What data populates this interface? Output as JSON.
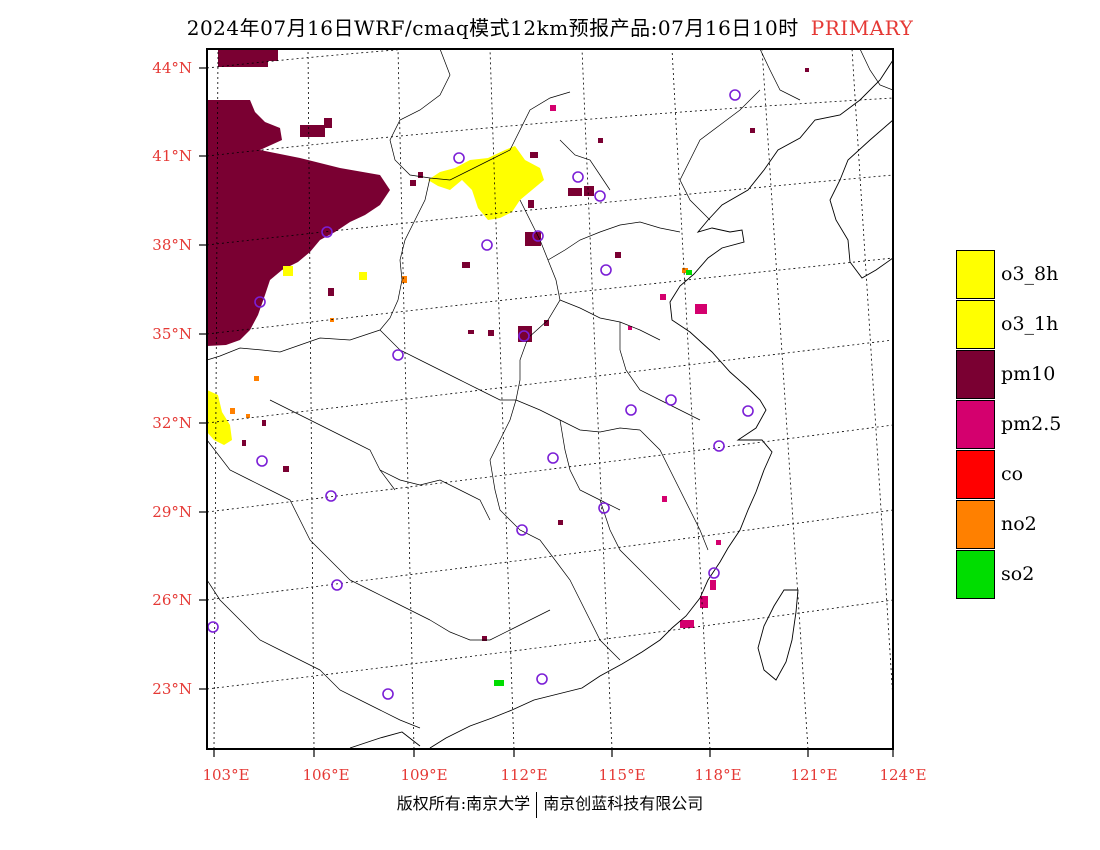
{
  "header": {
    "title": "2024年07月16日WRF/cmaq模式12km预报产品:07月16日10时",
    "tag": "PRIMARY"
  },
  "axes": {
    "lat_labels": [
      "44°N",
      "41°N",
      "38°N",
      "35°N",
      "32°N",
      "29°N",
      "26°N",
      "23°N"
    ],
    "lon_labels": [
      "103°E",
      "106°E",
      "109°E",
      "112°E",
      "115°E",
      "118°E",
      "121°E",
      "124°E"
    ]
  },
  "legend": {
    "items": [
      {
        "label": "o3_8h",
        "color": "#ffff00"
      },
      {
        "label": "o3_1h",
        "color": "#ffff00"
      },
      {
        "label": "pm10",
        "color": "#7a0032"
      },
      {
        "label": "pm2.5",
        "color": "#d4006e"
      },
      {
        "label": "co",
        "color": "#ff0000"
      },
      {
        "label": "no2",
        "color": "#ff8000"
      },
      {
        "label": "so2",
        "color": "#00dd00"
      }
    ]
  },
  "footer": {
    "left": "版权所有:南京大学",
    "right": "南京创蓝科技有限公司"
  },
  "colors": {
    "label_red": "#e53935",
    "station_marker": "#7b1fd6"
  }
}
